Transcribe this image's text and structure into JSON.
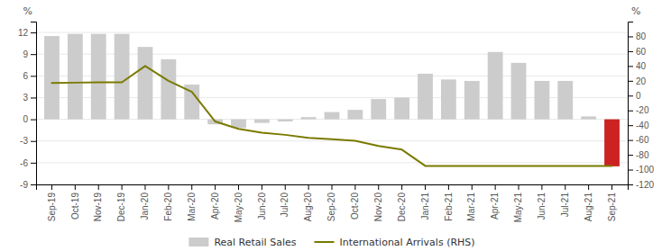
{
  "chart_data": {
    "type": "bar",
    "categories": [
      "Sep-19",
      "Oct-19",
      "Nov-19",
      "Dec-19",
      "Jan-20",
      "Feb-20",
      "Mar-20",
      "Apr-20",
      "May-20",
      "Jun-20",
      "Jul-20",
      "Aug-20",
      "Sep-20",
      "Oct-20",
      "Nov-20",
      "Dec-20",
      "Jan-21",
      "Feb-21",
      "Mar-21",
      "Apr-21",
      "May-21",
      "Jun-21",
      "Jul-21",
      "Aug-21",
      "Sep-21"
    ],
    "series": [
      {
        "name": "Real Retail Sales",
        "type": "bar",
        "color": "#cccccc",
        "colors": [
          "#cccccc",
          "#cccccc",
          "#cccccc",
          "#cccccc",
          "#cccccc",
          "#cccccc",
          "#cccccc",
          "#cccccc",
          "#cccccc",
          "#cccccc",
          "#cccccc",
          "#cccccc",
          "#cccccc",
          "#cccccc",
          "#cccccc",
          "#cccccc",
          "#cccccc",
          "#cccccc",
          "#cccccc",
          "#cccccc",
          "#cccccc",
          "#cccccc",
          "#cccccc",
          "#cccccc",
          "#cc2222"
        ],
        "values": [
          11.5,
          11.8,
          11.8,
          11.8,
          10.0,
          8.3,
          4.8,
          -0.7,
          -1.2,
          -0.5,
          -0.3,
          0.3,
          1.0,
          1.3,
          2.8,
          3.0,
          6.3,
          5.5,
          5.3,
          9.3,
          7.8,
          5.3,
          5.3,
          0.4,
          -6.5
        ]
      },
      {
        "name": "International Arrivals (RHS)",
        "type": "line",
        "color": "#7a7a00",
        "axis": "y2",
        "values": [
          17,
          17.5,
          18,
          18,
          40,
          20,
          5,
          -35,
          -45,
          -50,
          -53,
          -57,
          -59,
          -61,
          -68,
          -73,
          -95,
          -95,
          -95,
          -95,
          -95,
          -95,
          -95,
          -95,
          -95
        ]
      }
    ],
    "ylim": [
      -9,
      13.5
    ],
    "yticks": [
      -9,
      -6,
      -3,
      0,
      3,
      6,
      9,
      12
    ],
    "y2lim": [
      -120,
      100
    ],
    "y2ticks": [
      -120,
      -100,
      -80,
      -60,
      -40,
      -20,
      0,
      20,
      40,
      60,
      80
    ],
    "ylabel": "%",
    "y2label": "%",
    "grid": true,
    "legend": "bottom"
  }
}
